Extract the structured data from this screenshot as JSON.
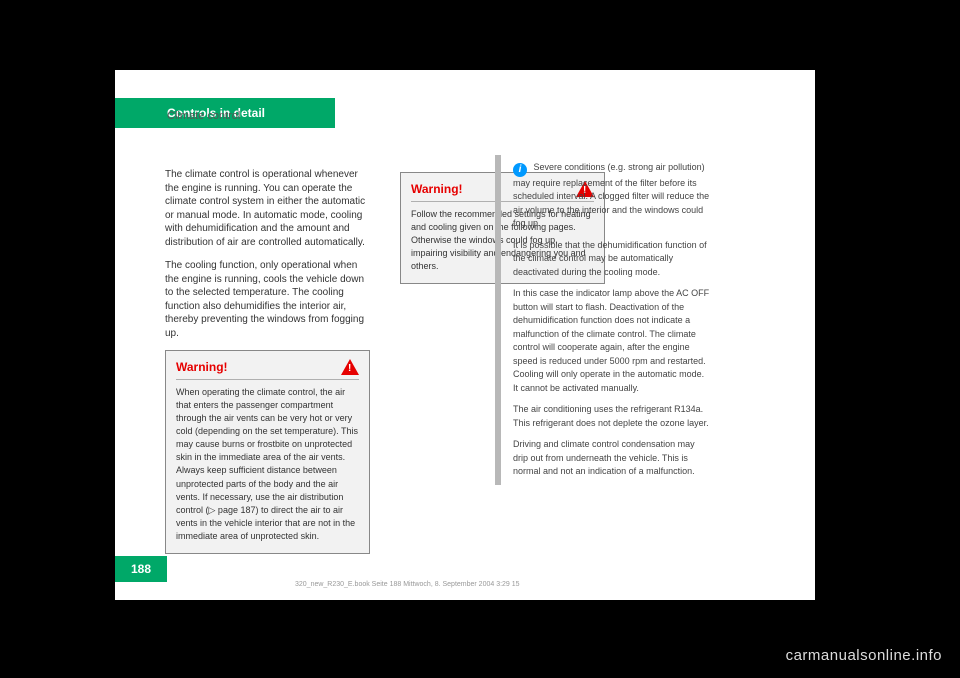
{
  "colors": {
    "page_bg": "#000000",
    "paper_bg": "#ffffff",
    "accent_green": "#00a868",
    "warning_red": "#e60000",
    "warning_bg": "#f2f2f2",
    "sidebar_border": "#b8b8b8",
    "info_icon_bg": "#0099ff",
    "watermark": "#dcdcdc"
  },
  "header": {
    "section_title": "Controls in detail",
    "breadcrumb": "Climate control"
  },
  "column1": {
    "p1": "The climate control is operational whenever the engine is running. You can operate the climate control system in either the automatic or manual mode. In automatic mode, cooling with dehumidification and the amount and distribution of air are controlled automatically.",
    "p2": "The cooling function, only operational when the engine is running, cools the vehicle down to the selected temperature. The cooling function also dehumidifies the interior air, thereby preventing the windows from fogging up.",
    "warning": {
      "label": "Warning!",
      "body": "When operating the climate control, the air that enters the passenger compartment through the air vents can be very hot or very cold (depending on the set temperature). This may cause burns or frostbite on unprotected skin in the immediate area of the air vents. Always keep sufficient distance between unprotected parts of the body and the air vents. If necessary, use the air distribution control (▷ page 187) to direct the air to air vents in the vehicle interior that are not in the immediate area of unprotected skin."
    }
  },
  "column2": {
    "warning": {
      "label": "Warning!",
      "body": "Follow the recommended settings for heating and cooling given on the following pages. Otherwise the windows could fog up, impairing visibility and endangering you and others."
    }
  },
  "sidebar": {
    "info_mark": "i",
    "p1": "Severe conditions (e.g. strong air pollution) may require replacement of the filter before its scheduled interval. A clogged filter will reduce the air volume to the interior and the windows could fog up.",
    "p2": "It is possible that the dehumidification function of the climate control may be automatically deactivated during the cooling mode.",
    "p3": "In this case the indicator lamp above the AC OFF button will start to flash. Deactivation of the dehumidification function does not indicate a malfunction of the climate control. The climate control will cooperate again, after the engine speed is reduced under 5000 rpm and restarted. Cooling will only operate in the automatic mode. It cannot be activated manually.",
    "p4": "The air conditioning uses the refrigerant R134a. This refrigerant does not deplete the ozone layer.",
    "p5": "Driving and climate control condensation may drip out from underneath the vehicle. This is normal and not an indication of a malfunction."
  },
  "footer": {
    "page_number": "188",
    "fine_print": "320_new_R230_E.book  Seite 188  Mittwoch, 8. September 2004  3:29 15"
  },
  "watermark": "carmanualsonline.info"
}
